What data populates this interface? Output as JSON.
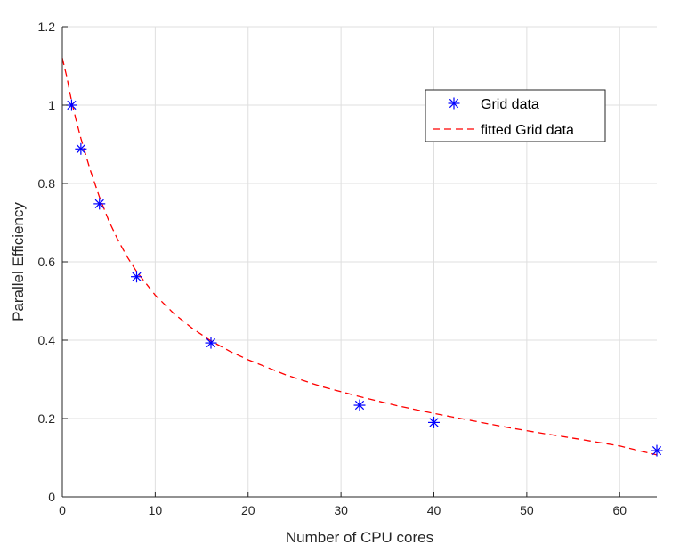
{
  "chart_data": {
    "type": "scatter",
    "title": "",
    "xlabel": "Number of CPU cores",
    "ylabel": "Parallel Efficiency",
    "xlim": [
      0,
      64
    ],
    "ylim": [
      0,
      1.2
    ],
    "xticks": [
      0,
      10,
      20,
      30,
      40,
      50,
      60
    ],
    "yticks": [
      0,
      0.2,
      0.4,
      0.6,
      0.8,
      1,
      1.2
    ],
    "xtick_labels": [
      "0",
      "10",
      "20",
      "30",
      "40",
      "50",
      "60"
    ],
    "ytick_labels": [
      "0",
      "0.2",
      "0.4",
      "0.6",
      "0.8",
      "1",
      "1.2"
    ],
    "grid": true,
    "legend_position": "top-right",
    "series": [
      {
        "name": "Grid data",
        "style": "marker-asterisk",
        "color": "#0000ff",
        "x": [
          1,
          2,
          4,
          8,
          16,
          32,
          40,
          64
        ],
        "y": [
          1.0,
          0.888,
          0.748,
          0.562,
          0.393,
          0.234,
          0.19,
          0.118
        ]
      },
      {
        "name": "fitted Grid data",
        "style": "dashed-line",
        "color": "#ff0000",
        "x": [
          0,
          0.5,
          1,
          1.5,
          2,
          3,
          4,
          5,
          6,
          7,
          8,
          10,
          12,
          14,
          16,
          18,
          20,
          24,
          28,
          32,
          36,
          40,
          44,
          48,
          52,
          56,
          60,
          64
        ],
        "y": [
          1.12,
          1.07,
          1.01,
          0.96,
          0.915,
          0.835,
          0.765,
          0.705,
          0.655,
          0.612,
          0.575,
          0.515,
          0.468,
          0.43,
          0.398,
          0.372,
          0.35,
          0.312,
          0.281,
          0.256,
          0.233,
          0.213,
          0.195,
          0.177,
          0.161,
          0.146,
          0.13,
          0.107
        ]
      }
    ]
  }
}
